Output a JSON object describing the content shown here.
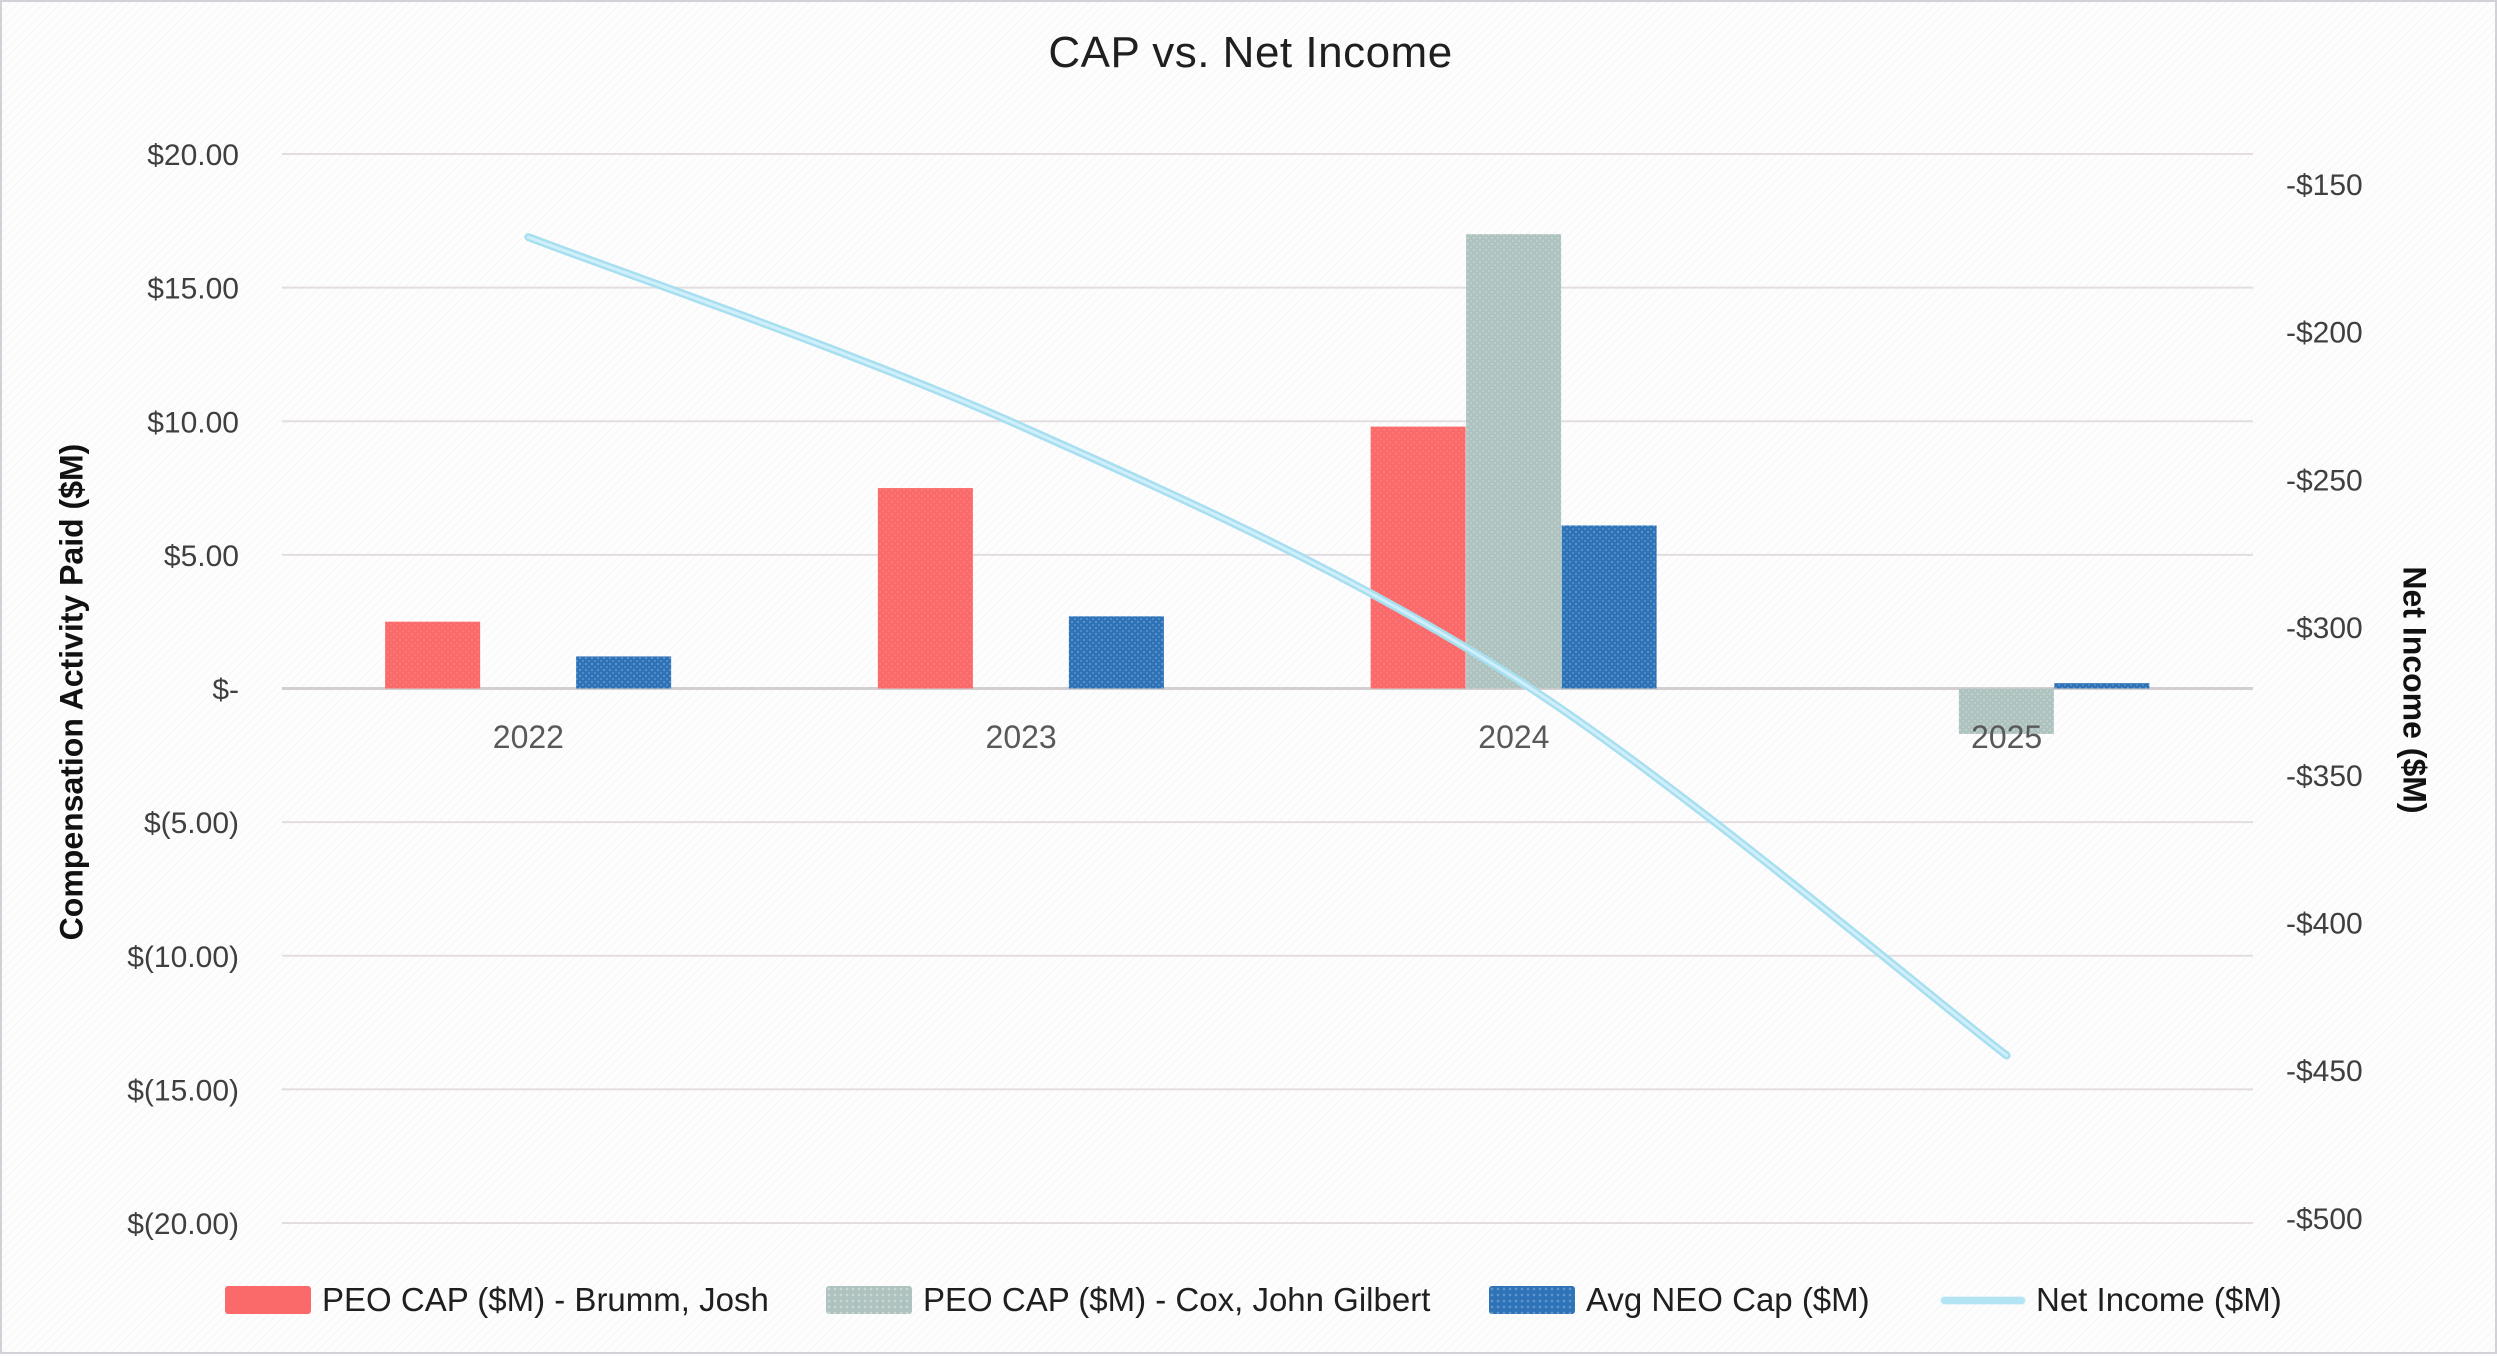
{
  "chart_data": {
    "type": "combo-bar-line",
    "title": "CAP vs. Net Income",
    "categories": [
      "2022",
      "2023",
      "2024",
      "2025"
    ],
    "series": [
      {
        "name": "PEO CAP ($M) - Brumm, Josh",
        "type": "bar",
        "axis": "left",
        "color": "#fb6a6a",
        "values": [
          2.5,
          7.5,
          9.8,
          null
        ]
      },
      {
        "name": "PEO CAP ($M) - Cox, John Gilbert",
        "type": "bar",
        "axis": "left",
        "color": "#aec3bf",
        "values": [
          null,
          null,
          17.0,
          -1.7
        ]
      },
      {
        "name": "Avg NEO Cap ($M)",
        "type": "bar",
        "axis": "left",
        "color": "#2e73b8",
        "values": [
          1.2,
          2.7,
          6.1,
          0.2
        ]
      },
      {
        "name": "Net Income ($M)",
        "type": "line",
        "axis": "right",
        "color": "#b2e4f3",
        "values": [
          -168,
          -232,
          -317,
          -445
        ]
      }
    ],
    "left_axis": {
      "title": "Compensation Activity Paid ($M)",
      "min": -20,
      "max": 20,
      "ticks": [
        {
          "label": "$20.00",
          "value": 20
        },
        {
          "label": "$15.00",
          "value": 15
        },
        {
          "label": "$10.00",
          "value": 10
        },
        {
          "label": "$5.00",
          "value": 5
        },
        {
          "label": "$-",
          "value": 0
        },
        {
          "label": "$(5.00)",
          "value": -5
        },
        {
          "label": "$(10.00)",
          "value": -10
        },
        {
          "label": "$(15.00)",
          "value": -15
        },
        {
          "label": "$(20.00)",
          "value": -20
        }
      ]
    },
    "right_axis": {
      "title": "Net Income ($M)",
      "ticks": [
        {
          "label": "-$150",
          "value": -150
        },
        {
          "label": "-$200",
          "value": -200
        },
        {
          "label": "-$250",
          "value": -250
        },
        {
          "label": "-$300",
          "value": -300
        },
        {
          "label": "-$350",
          "value": -350
        },
        {
          "label": "-$400",
          "value": -400
        },
        {
          "label": "-$450",
          "value": -450
        },
        {
          "label": "-$500",
          "value": -500
        }
      ]
    },
    "legend_position": "bottom",
    "grid": true,
    "colors": {
      "gridline": "#e3dddf",
      "zero_axis": "#d3ced0",
      "tick_text": "#3f3f3f",
      "category_text": "#595959",
      "line_outer": "#a7dff0",
      "line_inner": "#cfeffa"
    }
  }
}
